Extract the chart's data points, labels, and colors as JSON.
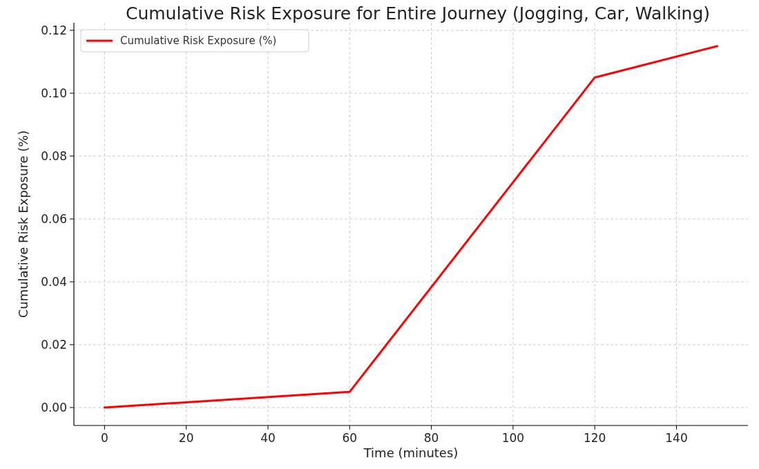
{
  "chart_data": {
    "type": "line",
    "title": "Cumulative Risk Exposure for Entire Journey (Jogging, Car, Walking)",
    "xlabel": "Time (minutes)",
    "ylabel": "Cumulative Risk Exposure (%)",
    "x": [
      0,
      60,
      120,
      150
    ],
    "series": [
      {
        "name": "Cumulative Risk Exposure (%)",
        "color": "#ff0000",
        "values": [
          0,
          0.005,
          0.105,
          0.115
        ]
      }
    ],
    "xlim": [
      -7.5,
      157.5
    ],
    "xticks": [
      0,
      20,
      40,
      60,
      80,
      100,
      120,
      140
    ],
    "ylim": [
      -0.0057,
      0.1224
    ],
    "yticks": [
      {
        "value": 0,
        "label": "0.00"
      },
      {
        "value": 0.02,
        "label": "0.02"
      },
      {
        "value": 0.04,
        "label": "0.04"
      },
      {
        "value": 0.06,
        "label": "0.06"
      },
      {
        "value": 0.08,
        "label": "0.08"
      },
      {
        "value": 0.1,
        "label": "0.10"
      },
      {
        "value": 0.12,
        "label": "0.12"
      }
    ],
    "grid": true,
    "legend": "top left",
    "line_style": "solid",
    "marker": "none"
  }
}
